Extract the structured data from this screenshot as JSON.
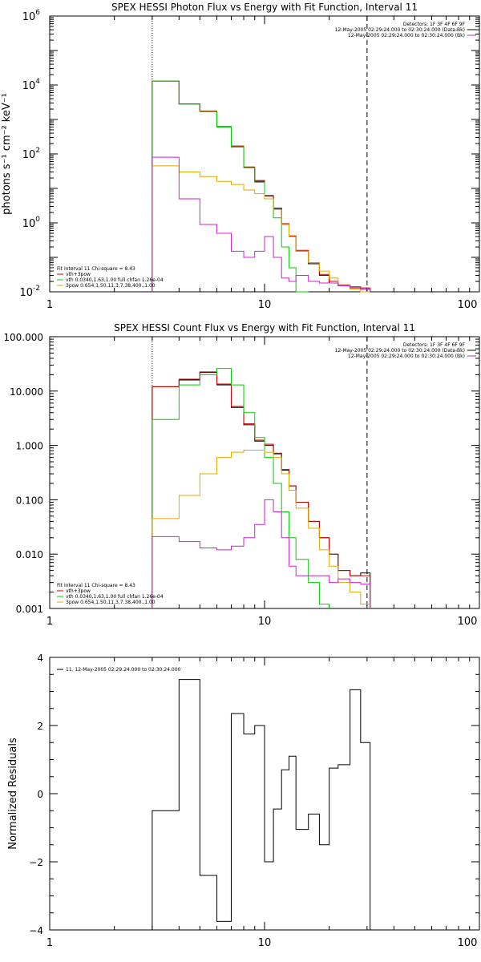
{
  "chart_data": [
    {
      "type": "line",
      "title": "SPEX HESSI Photon Flux vs Energy with Fit Function, Interval 11",
      "ylabel": "photons s⁻¹ cm⁻² keV⁻¹",
      "xscale": "log",
      "yscale": "log",
      "xlim": [
        1,
        100
      ],
      "ylim": [
        0.01,
        1000000
      ],
      "xticks": [
        {
          "v": 1,
          "label": "1"
        },
        {
          "v": 10,
          "label": "10"
        },
        {
          "v": 100,
          "label": "100"
        }
      ],
      "yticks": [
        {
          "v": 0.01,
          "base": "10",
          "exp": "-2"
        },
        {
          "v": 1,
          "base": "10",
          "exp": "0"
        },
        {
          "v": 100,
          "base": "10",
          "exp": "2"
        },
        {
          "v": 10000,
          "base": "10",
          "exp": "4"
        },
        {
          "v": 1000000,
          "base": "10",
          "exp": "6"
        }
      ],
      "vlines": [
        {
          "x": 3,
          "style": "dotted"
        },
        {
          "x": 30,
          "style": "dashed"
        }
      ],
      "legend_right": {
        "lines": [
          "Detectors: 1F 3F 4F 6F 9F",
          "12-May-2005 02:29:24.000 to 02:30:24.000 (Data-Bk)",
          "12-May-2005 02:29:24.000 to 02:30:24.000 (Bk)"
        ],
        "colors": [
          "",
          "#000000",
          "#cc22cc"
        ]
      },
      "legend_left": {
        "lines": [
          "Fit Interval 11    Chi-square = 8.43",
          "vth+3pow",
          "vth 0.0340,1.63,1.00  full chfan 1.26e-04",
          "3pow 0.654,1.50,11.3,7.38,400.,1.00"
        ],
        "colors": [
          "",
          "#cc0000",
          "#00cc00",
          "#ddaa00"
        ]
      },
      "edges": [
        3,
        4,
        5,
        6,
        7,
        8,
        9,
        10,
        11,
        12,
        13,
        14,
        16,
        18,
        20,
        22,
        25,
        28,
        31
      ],
      "series": [
        {
          "color": "#000000",
          "values": [
            13000,
            2800,
            1700,
            600,
            160,
            40,
            16,
            6,
            2.6,
            0.9,
            0.4,
            0.15,
            0.065,
            0.03,
            0.018,
            0.015,
            0.013,
            0.012
          ]
        },
        {
          "color": "#cc0000",
          "values": [
            13000,
            2850,
            1750,
            620,
            170,
            42,
            17,
            6.2,
            2.7,
            0.95,
            0.42,
            0.16,
            0.07,
            0.032,
            0.02,
            0.016,
            0.014,
            0.013
          ]
        },
        {
          "color": "#00cc00",
          "values": [
            13000,
            2800,
            1700,
            600,
            160,
            40,
            15,
            5,
            1.4,
            0.2,
            0.05,
            0.01
          ]
        },
        {
          "color": "#ddaa00",
          "values": [
            45,
            30,
            22,
            16,
            13,
            9,
            7,
            5,
            2.4,
            0.9,
            0.4,
            0.15,
            0.07,
            0.04,
            0.025,
            0.016,
            0.012,
            0.01
          ]
        },
        {
          "color": "#cc22cc",
          "values": [
            80,
            5,
            0.9,
            0.5,
            0.15,
            0.1,
            0.15,
            0.4,
            0.1,
            0.025,
            0.02,
            0.03,
            0.02,
            0.018,
            0.018,
            0.015,
            0.013,
            0.012
          ]
        }
      ]
    },
    {
      "type": "line",
      "title": "SPEX HESSI Count Flux vs Energy with Fit Function, Interval 11",
      "ylabel": "",
      "xscale": "log",
      "yscale": "log",
      "xlim": [
        1,
        100
      ],
      "ylim": [
        0.001,
        100
      ],
      "xticks": [
        {
          "v": 1,
          "label": "1"
        },
        {
          "v": 10,
          "label": "10"
        },
        {
          "v": 100,
          "label": "100"
        }
      ],
      "yticks": [
        {
          "v": 0.001,
          "label": "0.001"
        },
        {
          "v": 0.01,
          "label": "0.010"
        },
        {
          "v": 0.1,
          "label": "0.100"
        },
        {
          "v": 1,
          "label": "1.000"
        },
        {
          "v": 10,
          "label": "10.000"
        },
        {
          "v": 100,
          "label": "100.000"
        }
      ],
      "vlines": [
        {
          "x": 3,
          "style": "dotted"
        },
        {
          "x": 30,
          "style": "dashed"
        }
      ],
      "legend_right": {
        "lines": [
          "Detectors: 1F 3F 4F 6F 9F",
          "12-May-2005 02:29:24.000 to 02:30:24.000 (Data-Bk)",
          "12-May-2005 02:29:24.000 to 02:30:24.000 (Bk)"
        ],
        "colors": [
          "",
          "#000000",
          "#cc22cc"
        ]
      },
      "legend_left": {
        "lines": [
          "Fit Interval 11    Chi-square = 8.43",
          "vth+3pow",
          "vth 0.0340,1.63,1.00  full chfan 1.26e-04",
          "3pow 0.654,1.50,11.3,7.38,400.,1.00"
        ],
        "colors": [
          "",
          "#cc0000",
          "#00cc00",
          "#ddaa00"
        ]
      },
      "edges": [
        3,
        4,
        5,
        6,
        7,
        8,
        9,
        10,
        11,
        12,
        13,
        14,
        16,
        18,
        20,
        22,
        25,
        28,
        31
      ],
      "series": [
        {
          "color": "#000000",
          "values": [
            12.0,
            16.0,
            22.0,
            13.0,
            5.0,
            2.4,
            1.2,
            1.0,
            0.7,
            0.35,
            0.18,
            0.09,
            0.04,
            0.02,
            0.01,
            0.005,
            0.004,
            0.0045
          ]
        },
        {
          "color": "#cc0000",
          "values": [
            12.0,
            16.5,
            22.5,
            13.5,
            5.2,
            2.5,
            1.25,
            1.05,
            0.72,
            0.36,
            0.18,
            0.09,
            0.04,
            0.02,
            0.01,
            0.005,
            0.004,
            0.004
          ]
        },
        {
          "color": "#00cc00",
          "values": [
            3.0,
            13.0,
            20.0,
            26.0,
            13.0,
            4.0,
            1.4,
            0.6,
            0.2,
            0.06,
            0.02,
            0.008,
            0.003,
            0.0012
          ]
        },
        {
          "color": "#ddaa00",
          "values": [
            0.045,
            0.12,
            0.3,
            0.6,
            0.75,
            0.82,
            0.82,
            0.75,
            0.6,
            0.3,
            0.15,
            0.07,
            0.03,
            0.012,
            0.006,
            0.003,
            0.002,
            0.0012
          ]
        },
        {
          "color": "#cc22cc",
          "values": [
            0.021,
            0.017,
            0.013,
            0.012,
            0.014,
            0.02,
            0.035,
            0.1,
            0.06,
            0.02,
            0.006,
            0.004,
            0.004,
            0.004,
            0.003,
            0.0035,
            0.003,
            0.0028
          ]
        }
      ]
    },
    {
      "type": "line",
      "title": "",
      "ylabel": "Normalized Residuals",
      "xscale": "log",
      "yscale": "linear",
      "xlim": [
        1,
        100
      ],
      "ylim": [
        -4,
        4
      ],
      "xticks": [
        {
          "v": 1,
          "label": "1"
        },
        {
          "v": 10,
          "label": "10"
        },
        {
          "v": 100,
          "label": "100"
        }
      ],
      "yticks": [
        {
          "v": -4,
          "label": "−4"
        },
        {
          "v": -2,
          "label": "−2"
        },
        {
          "v": 0,
          "label": "0"
        },
        {
          "v": 2,
          "label": "2"
        },
        {
          "v": 4,
          "label": "4"
        }
      ],
      "vlines": [],
      "legend_left": {
        "lines": [
          "11. 12-May-2005 02:29:24.000 to 02:30:24.000"
        ],
        "colors": [
          "#000000"
        ]
      },
      "edges": [
        3,
        4,
        5,
        6,
        7,
        8,
        9,
        10,
        11,
        12,
        13,
        14,
        16,
        18,
        20,
        22,
        25,
        28,
        31
      ],
      "series": [
        {
          "color": "#000000",
          "values": [
            -0.5,
            3.35,
            -2.4,
            -3.75,
            2.35,
            1.75,
            2.0,
            -2.0,
            -0.45,
            0.7,
            1.1,
            -1.05,
            -0.6,
            -1.5,
            0.75,
            0.85,
            3.05,
            1.5
          ]
        }
      ],
      "drop_ends": true
    }
  ]
}
